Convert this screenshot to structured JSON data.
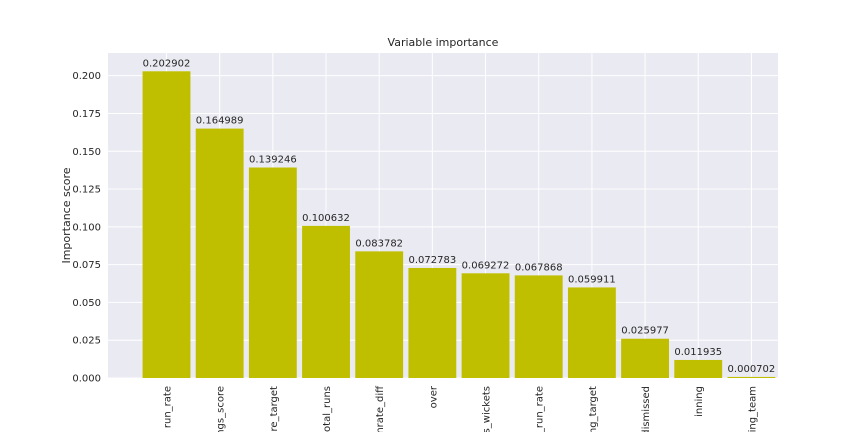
{
  "chart_data": {
    "type": "bar",
    "title": "Variable importance",
    "xlabel": "",
    "ylabel": "Importance score",
    "ylim": [
      0,
      0.215
    ],
    "yticks": [
      "0.000",
      "0.025",
      "0.050",
      "0.075",
      "0.100",
      "0.125",
      "0.150",
      "0.175",
      "0.200"
    ],
    "categories": [
      "run_rate",
      "ngs_score",
      "ore_target",
      "total_runs",
      "unrate_diff",
      "over",
      "s_wickets",
      "l_run_rate",
      "ing_target",
      "dismissed",
      "inning",
      "ting_team"
    ],
    "values": [
      0.202902,
      0.164989,
      0.139246,
      0.100632,
      0.083782,
      0.072783,
      0.069272,
      0.067868,
      0.059911,
      0.025977,
      0.011935,
      0.000702
    ],
    "value_labels": [
      "0.202902",
      "0.164989",
      "0.139246",
      "0.100632",
      "0.083782",
      "0.072783",
      "0.069272",
      "0.067868",
      "0.059911",
      "0.025977",
      "0.011935",
      "0.000702"
    ],
    "grid": true,
    "colors": {
      "bar": "#bfbf00",
      "background": "#eaeaf2",
      "grid": "#ffffff"
    }
  }
}
